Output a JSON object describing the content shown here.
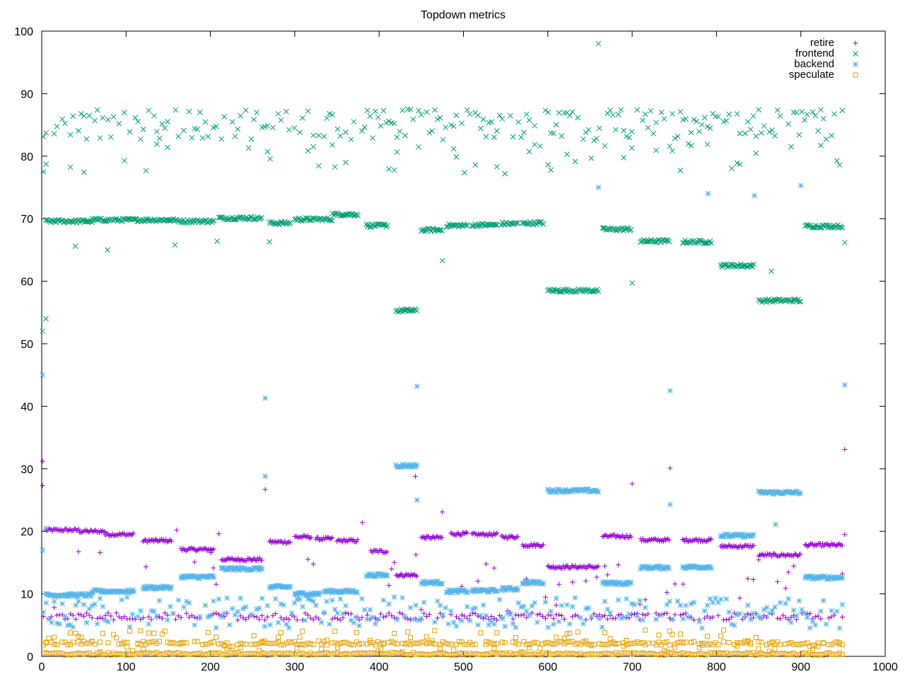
{
  "chart_data": {
    "type": "scatter",
    "title": "Topdown metrics",
    "xlabel": "",
    "ylabel": "",
    "xlim": [
      0,
      1000
    ],
    "ylim": [
      0,
      100
    ],
    "xticks": [
      0,
      100,
      200,
      300,
      400,
      500,
      600,
      700,
      800,
      900,
      1000
    ],
    "yticks": [
      0,
      10,
      20,
      30,
      40,
      50,
      60,
      70,
      80,
      90,
      100
    ],
    "grid": false,
    "legend_position": "top-right",
    "series": [
      {
        "name": "retire",
        "marker": "plus",
        "color": "#9400d3",
        "segments": [
          {
            "x": [
              5,
              45
            ],
            "y": 20.2
          },
          {
            "x": [
              45,
              75
            ],
            "y": 20.0
          },
          {
            "x": [
              75,
              110
            ],
            "y": 19.5
          },
          {
            "x": [
              120,
              155
            ],
            "y": 18.5
          },
          {
            "x": [
              165,
              205
            ],
            "y": 17.1
          },
          {
            "x": [
              213,
              262
            ],
            "y": 15.5
          },
          {
            "x": [
              270,
              295
            ],
            "y": 18.3
          },
          {
            "x": [
              300,
              320
            ],
            "y": 19.1
          },
          {
            "x": [
              325,
              345
            ],
            "y": 18.8
          },
          {
            "x": [
              350,
              375
            ],
            "y": 18.5
          },
          {
            "x": [
              390,
              410
            ],
            "y": 16.8
          },
          {
            "x": [
              420,
              445
            ],
            "y": 13.0
          },
          {
            "x": [
              450,
              475
            ],
            "y": 19.0
          },
          {
            "x": [
              485,
              505
            ],
            "y": 19.6
          },
          {
            "x": [
              510,
              540
            ],
            "y": 19.5
          },
          {
            "x": [
              545,
              565
            ],
            "y": 19.1
          },
          {
            "x": [
              570,
              595
            ],
            "y": 17.8
          },
          {
            "x": [
              600,
              660
            ],
            "y": 14.3
          },
          {
            "x": [
              665,
              700
            ],
            "y": 19.2
          },
          {
            "x": [
              710,
              745
            ],
            "y": 18.6
          },
          {
            "x": [
              760,
              795
            ],
            "y": 18.6
          },
          {
            "x": [
              805,
              845
            ],
            "y": 17.6
          },
          {
            "x": [
              850,
              900
            ],
            "y": 16.2
          },
          {
            "x": [
              905,
              950
            ],
            "y": 17.8
          }
        ],
        "outliers": [
          {
            "x": 1,
            "y": 31.2
          },
          {
            "x": 1,
            "y": 27.3
          },
          {
            "x": 265,
            "y": 26.7
          },
          {
            "x": 380,
            "y": 21.4
          },
          {
            "x": 443,
            "y": 28.8
          },
          {
            "x": 475,
            "y": 23.1
          },
          {
            "x": 700,
            "y": 27.6
          },
          {
            "x": 745,
            "y": 30.1
          },
          {
            "x": 952,
            "y": 33.1
          },
          {
            "x": 952,
            "y": 19.5
          },
          {
            "x": 160,
            "y": 20.2
          },
          {
            "x": 210,
            "y": 19.6
          }
        ]
      },
      {
        "name": "frontend",
        "marker": "cross",
        "color": "#009e73",
        "segments": [
          {
            "x": [
              5,
              60
            ],
            "y": 69.6
          },
          {
            "x": [
              60,
              160
            ],
            "y": 69.8
          },
          {
            "x": [
              160,
              205
            ],
            "y": 69.6
          },
          {
            "x": [
              210,
              262
            ],
            "y": 70.1
          },
          {
            "x": [
              270,
              295
            ],
            "y": 69.3
          },
          {
            "x": [
              300,
              345
            ],
            "y": 69.9
          },
          {
            "x": [
              345,
              375
            ],
            "y": 70.7
          },
          {
            "x": [
              385,
              410
            ],
            "y": 68.9
          },
          {
            "x": [
              420,
              445
            ],
            "y": 55.3
          },
          {
            "x": [
              450,
              475
            ],
            "y": 68.2
          },
          {
            "x": [
              480,
              505
            ],
            "y": 68.9
          },
          {
            "x": [
              510,
              540
            ],
            "y": 69.0
          },
          {
            "x": [
              545,
              565
            ],
            "y": 69.2
          },
          {
            "x": [
              570,
              595
            ],
            "y": 69.3
          },
          {
            "x": [
              600,
              660
            ],
            "y": 58.5
          },
          {
            "x": [
              665,
              700
            ],
            "y": 68.3
          },
          {
            "x": [
              710,
              745
            ],
            "y": 66.4
          },
          {
            "x": [
              760,
              795
            ],
            "y": 66.3
          },
          {
            "x": [
              805,
              845
            ],
            "y": 62.5
          },
          {
            "x": [
              850,
              900
            ],
            "y": 56.9
          },
          {
            "x": [
              905,
              950
            ],
            "y": 68.8
          }
        ],
        "outliers": [
          {
            "x": 660,
            "y": 98.0
          },
          {
            "x": 1,
            "y": 52.0
          },
          {
            "x": 5,
            "y": 54.0
          },
          {
            "x": 2,
            "y": 77.5
          },
          {
            "x": 475,
            "y": 63.3
          },
          {
            "x": 700,
            "y": 59.7
          },
          {
            "x": 865,
            "y": 61.6
          },
          {
            "x": 40,
            "y": 65.6
          },
          {
            "x": 78,
            "y": 65.0
          },
          {
            "x": 158,
            "y": 65.8
          },
          {
            "x": 208,
            "y": 66.4
          },
          {
            "x": 270,
            "y": 66.3
          },
          {
            "x": 952,
            "y": 66.2
          }
        ]
      },
      {
        "name": "backend",
        "marker": "star",
        "color": "#56b4e9",
        "segments": [
          {
            "x": [
              5,
              60
            ],
            "y": 9.8
          },
          {
            "x": [
              60,
              110
            ],
            "y": 10.4
          },
          {
            "x": [
              120,
              155
            ],
            "y": 11.0
          },
          {
            "x": [
              165,
              205
            ],
            "y": 12.7
          },
          {
            "x": [
              213,
              262
            ],
            "y": 14.0
          },
          {
            "x": [
              270,
              295
            ],
            "y": 11.1
          },
          {
            "x": [
              300,
              330
            ],
            "y": 10.0
          },
          {
            "x": [
              335,
              375
            ],
            "y": 10.4
          },
          {
            "x": [
              385,
              410
            ],
            "y": 13.0
          },
          {
            "x": [
              420,
              445
            ],
            "y": 30.5
          },
          {
            "x": [
              450,
              475
            ],
            "y": 11.8
          },
          {
            "x": [
              480,
              505
            ],
            "y": 10.4
          },
          {
            "x": [
              510,
              540
            ],
            "y": 10.5
          },
          {
            "x": [
              545,
              565
            ],
            "y": 10.8
          },
          {
            "x": [
              570,
              595
            ],
            "y": 11.8
          },
          {
            "x": [
              600,
              660
            ],
            "y": 26.5
          },
          {
            "x": [
              665,
              700
            ],
            "y": 11.7
          },
          {
            "x": [
              710,
              745
            ],
            "y": 14.2
          },
          {
            "x": [
              760,
              795
            ],
            "y": 14.3
          },
          {
            "x": [
              805,
              845
            ],
            "y": 19.3
          },
          {
            "x": [
              850,
              900
            ],
            "y": 26.2
          },
          {
            "x": [
              905,
              950
            ],
            "y": 12.6
          }
        ],
        "outliers": [
          {
            "x": 1,
            "y": 45.0
          },
          {
            "x": 265,
            "y": 41.3
          },
          {
            "x": 265,
            "y": 28.8
          },
          {
            "x": 445,
            "y": 43.2
          },
          {
            "x": 445,
            "y": 25.0
          },
          {
            "x": 660,
            "y": 75.0
          },
          {
            "x": 745,
            "y": 42.5
          },
          {
            "x": 745,
            "y": 24.3
          },
          {
            "x": 952,
            "y": 43.4
          },
          {
            "x": 790,
            "y": 74.0
          },
          {
            "x": 845,
            "y": 73.7
          },
          {
            "x": 900,
            "y": 75.3
          },
          {
            "x": 870,
            "y": 21.1
          },
          {
            "x": 1,
            "y": 17.0
          },
          {
            "x": 5,
            "y": 20.5
          }
        ]
      },
      {
        "name": "speculate",
        "marker": "square",
        "color": "#e69f00",
        "segments": [],
        "outliers": []
      }
    ]
  }
}
